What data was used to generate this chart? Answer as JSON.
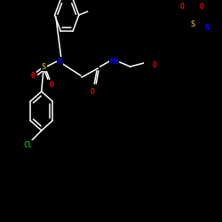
{
  "background_color": "#000000",
  "bond_color": "#ffffff",
  "atom_colors": {
    "N": "#0000ff",
    "O": "#ff0000",
    "S": "#c8a000",
    "Cl": "#00bb00",
    "C": "#ffffff"
  },
  "figsize": [
    2.5,
    2.5
  ],
  "dpi": 100,
  "xlim": [
    0,
    250
  ],
  "ylim": [
    0,
    250
  ]
}
